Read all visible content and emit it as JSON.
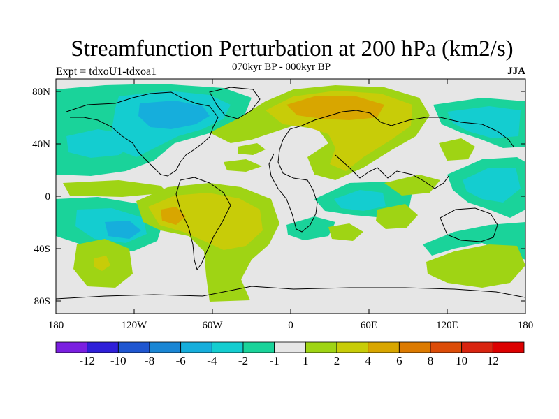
{
  "title": "Streamfunction Perturbation at 200 hPa (km2/s)",
  "left_label": "Expt = tdxoU1-tdxoa1",
  "center_label": "070kyr BP - 000kyr BP",
  "right_label": "JJA",
  "lat_ticks": [
    "80N",
    "40N",
    "0",
    "40S",
    "80S"
  ],
  "lon_ticks": [
    "180",
    "120W",
    "60W",
    "0",
    "60E",
    "120E",
    "180"
  ],
  "colorbar": {
    "labels": [
      "-12",
      "-10",
      "-8",
      "-6",
      "-4",
      "-2",
      "-1",
      "1",
      "2",
      "4",
      "6",
      "8",
      "10",
      "12"
    ],
    "colors": [
      "#7a1fe0",
      "#2f1fd8",
      "#1f56d0",
      "#1a86d4",
      "#16aedc",
      "#14cdd0",
      "#1ad39a",
      "#e6e6e6",
      "#9fd414",
      "#c8cc08",
      "#d8a600",
      "#dc7a00",
      "#dc4c08",
      "#d82410",
      "#dc0000"
    ]
  },
  "colors": {
    "background": "#e6e6e6",
    "neg_weak": "#14cdd0",
    "neg_strong": "#16aedc",
    "neg_light": "#1ad39a",
    "pos_weak": "#9fd414",
    "pos_mid": "#c8cc08",
    "pos_strong": "#d8a600"
  }
}
